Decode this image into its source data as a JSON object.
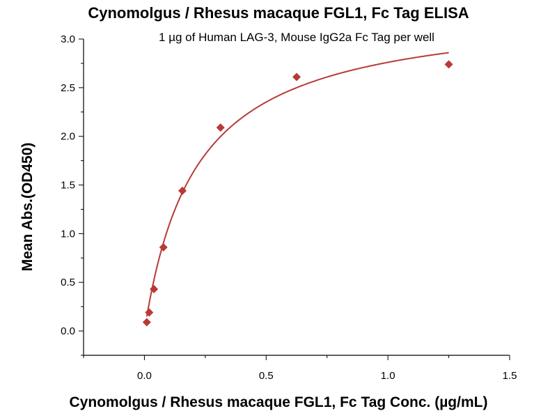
{
  "chart_data": {
    "type": "scatter",
    "title": "Cynomolgus / Rhesus macaque FGL1, Fc Tag ELISA",
    "subtitle": "1 µg of Human LAG-3, Mouse IgG2a Fc Tag per well",
    "xlabel": "Cynomolgus / Rhesus macaque FGL1, Fc Tag Conc. (µg/mL)",
    "ylabel": "Mean Abs.(OD450)",
    "xlim": [
      -0.25,
      1.5
    ],
    "ylim": [
      -0.25,
      3.0
    ],
    "x_ticks": [
      0.0,
      0.5,
      1.0,
      1.5
    ],
    "x_tick_labels": [
      "0.0",
      "0.5",
      "1.0",
      "1.5"
    ],
    "y_ticks": [
      0.0,
      0.5,
      1.0,
      1.5,
      2.0,
      2.5,
      3.0
    ],
    "y_tick_labels": [
      "0.0",
      "0.5",
      "1.0",
      "1.5",
      "2.0",
      "2.5",
      "3.0"
    ],
    "grid": false,
    "series": [
      {
        "color": "#b83a36",
        "marker": "diamond",
        "fit": "hyperbolic",
        "x": [
          0.0098,
          0.0195,
          0.039,
          0.078,
          0.156,
          0.3125,
          0.625,
          1.25
        ],
        "y": [
          0.09,
          0.19,
          0.43,
          0.86,
          1.44,
          2.09,
          2.61,
          2.74
        ]
      }
    ]
  }
}
